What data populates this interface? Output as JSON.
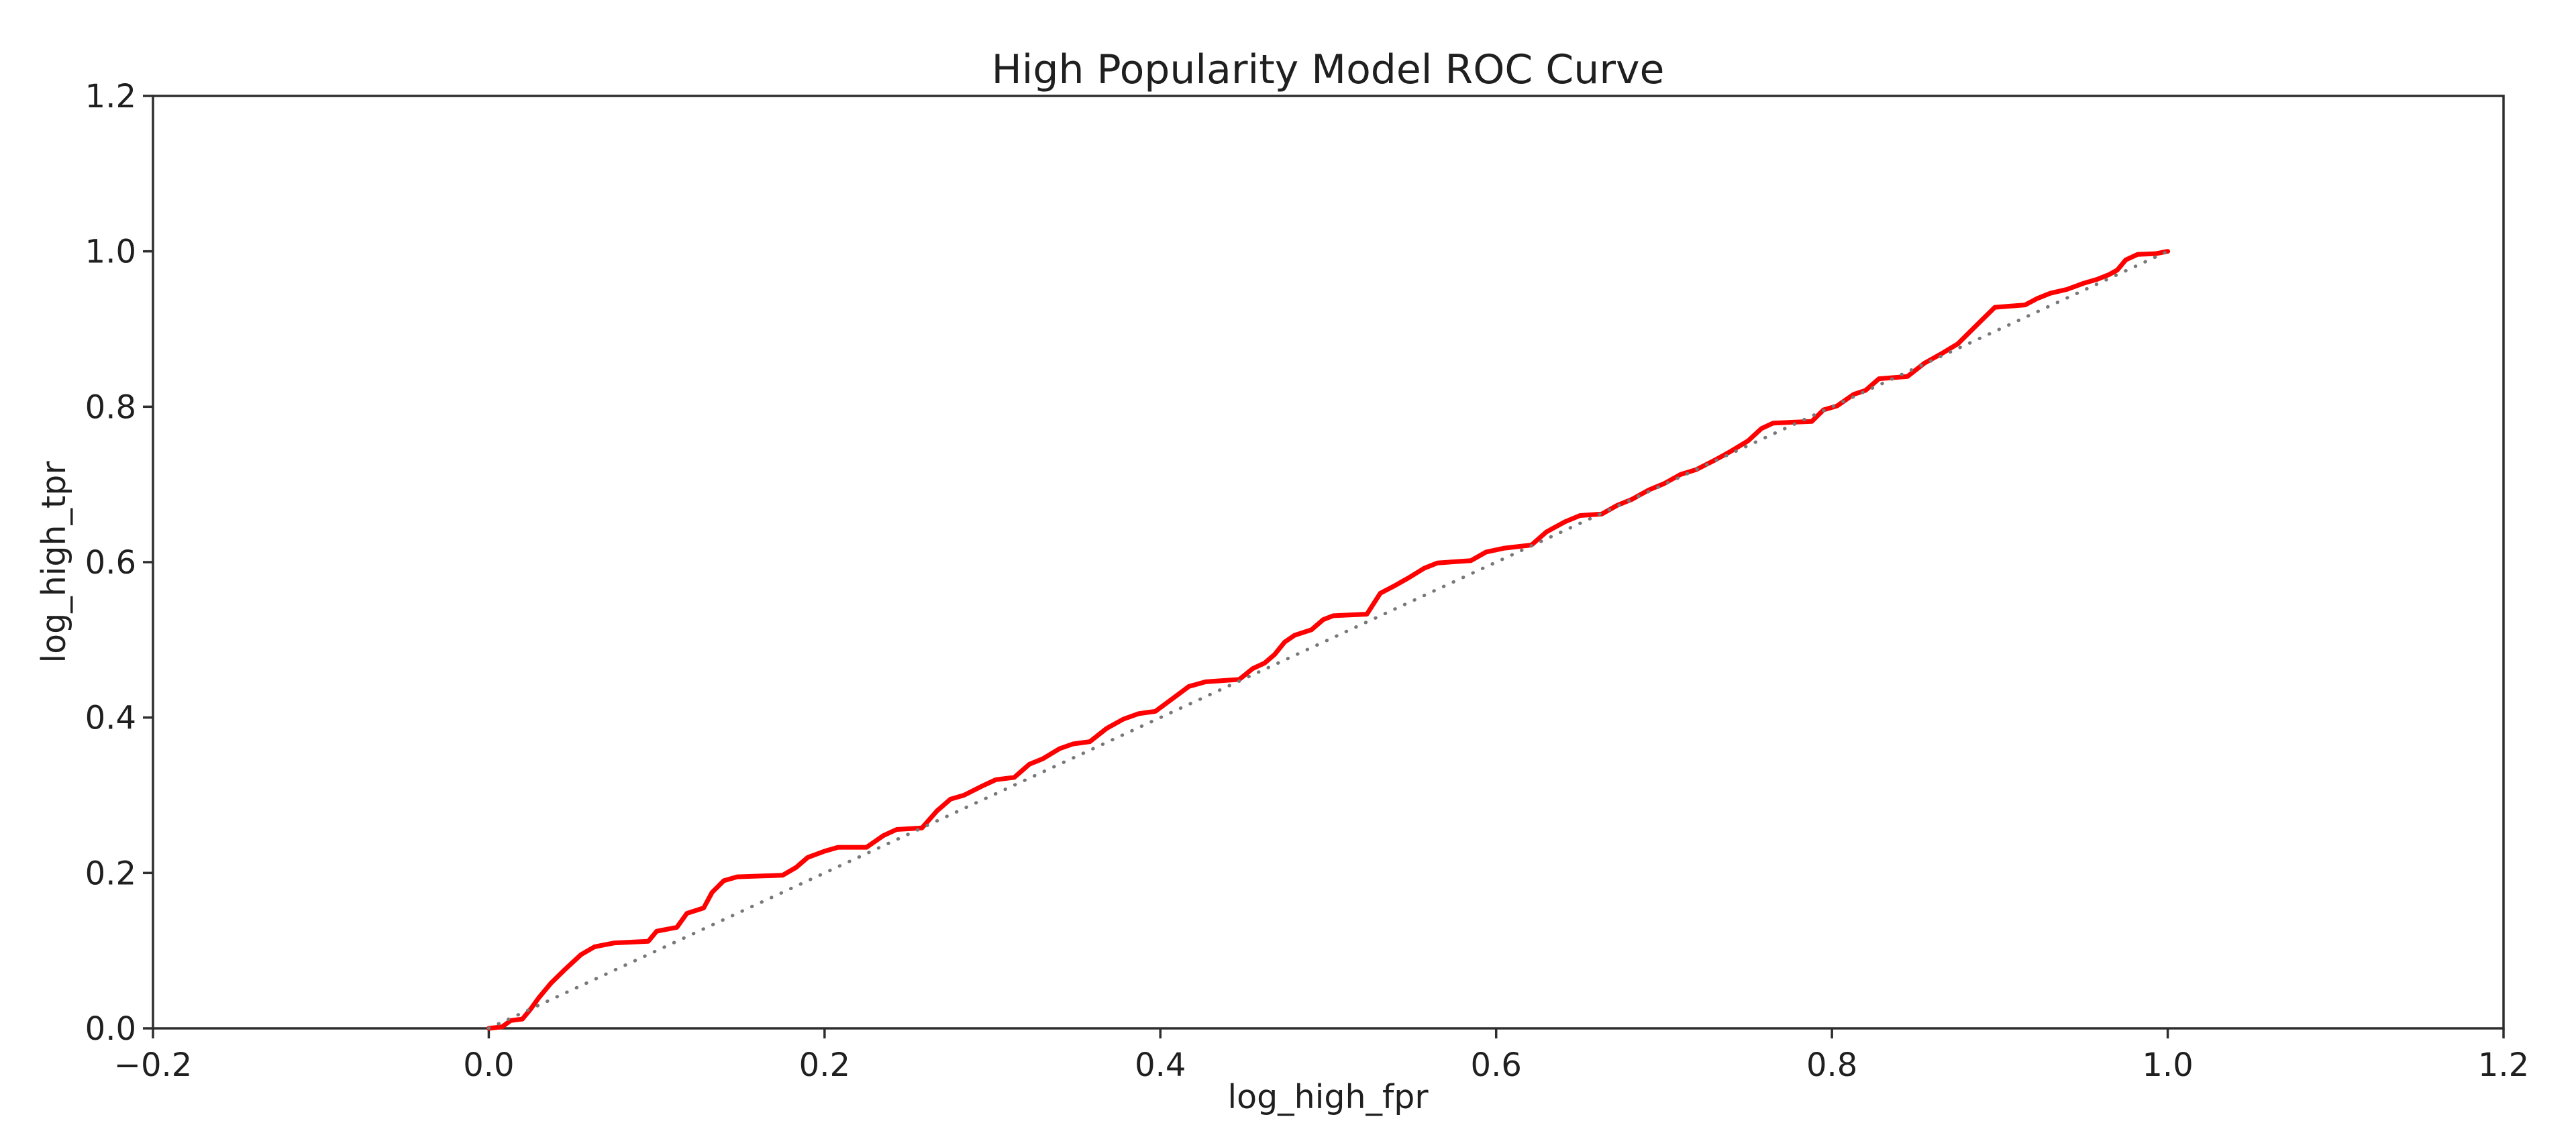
{
  "figure": {
    "background_color": "#ffffff",
    "frame_color": "#2e2e2e",
    "text_color": "#1f1f1f"
  },
  "chart_data": {
    "type": "line",
    "title": "High Popularity Model ROC Curve",
    "xlabel": "log_high_fpr",
    "ylabel": "log_high_tpr",
    "xlim": [
      -0.2,
      1.2
    ],
    "ylim": [
      0.0,
      1.2
    ],
    "grid": false,
    "legend": "none",
    "x_ticks": [
      -0.2,
      0.0,
      0.2,
      0.4,
      0.6,
      0.8,
      1.0,
      1.2
    ],
    "x_tick_labels": [
      "−0.2",
      "0.0",
      "0.2",
      "0.4",
      "0.6",
      "0.8",
      "1.0",
      "1.2"
    ],
    "y_ticks": [
      0.0,
      0.2,
      0.4,
      0.6,
      0.8,
      1.0,
      1.2
    ],
    "y_tick_labels": [
      "0.0",
      "0.2",
      "0.4",
      "0.6",
      "0.8",
      "1.0",
      "1.2"
    ],
    "series": [
      {
        "name": "roc_curve",
        "color": "#ff0000",
        "line_style": "solid",
        "line_width": 7,
        "points": [
          [
            0.0,
            0.0
          ],
          [
            0.008,
            0.002
          ],
          [
            0.013,
            0.01
          ],
          [
            0.02,
            0.012
          ],
          [
            0.025,
            0.025
          ],
          [
            0.03,
            0.04
          ],
          [
            0.037,
            0.058
          ],
          [
            0.045,
            0.075
          ],
          [
            0.055,
            0.095
          ],
          [
            0.063,
            0.105
          ],
          [
            0.075,
            0.11
          ],
          [
            0.095,
            0.112
          ],
          [
            0.1,
            0.125
          ],
          [
            0.112,
            0.13
          ],
          [
            0.118,
            0.148
          ],
          [
            0.128,
            0.155
          ],
          [
            0.133,
            0.175
          ],
          [
            0.14,
            0.19
          ],
          [
            0.148,
            0.195
          ],
          [
            0.175,
            0.197
          ],
          [
            0.183,
            0.207
          ],
          [
            0.19,
            0.22
          ],
          [
            0.2,
            0.228
          ],
          [
            0.208,
            0.233
          ],
          [
            0.225,
            0.233
          ],
          [
            0.235,
            0.248
          ],
          [
            0.243,
            0.256
          ],
          [
            0.258,
            0.258
          ],
          [
            0.267,
            0.28
          ],
          [
            0.275,
            0.295
          ],
          [
            0.283,
            0.3
          ],
          [
            0.295,
            0.313
          ],
          [
            0.302,
            0.32
          ],
          [
            0.313,
            0.323
          ],
          [
            0.322,
            0.34
          ],
          [
            0.33,
            0.347
          ],
          [
            0.34,
            0.36
          ],
          [
            0.348,
            0.366
          ],
          [
            0.358,
            0.369
          ],
          [
            0.368,
            0.386
          ],
          [
            0.378,
            0.398
          ],
          [
            0.387,
            0.405
          ],
          [
            0.397,
            0.408
          ],
          [
            0.407,
            0.424
          ],
          [
            0.417,
            0.44
          ],
          [
            0.427,
            0.446
          ],
          [
            0.447,
            0.449
          ],
          [
            0.455,
            0.463
          ],
          [
            0.462,
            0.47
          ],
          [
            0.468,
            0.481
          ],
          [
            0.474,
            0.497
          ],
          [
            0.48,
            0.506
          ],
          [
            0.49,
            0.513
          ],
          [
            0.497,
            0.526
          ],
          [
            0.503,
            0.531
          ],
          [
            0.523,
            0.533
          ],
          [
            0.531,
            0.56
          ],
          [
            0.539,
            0.569
          ],
          [
            0.548,
            0.58
          ],
          [
            0.557,
            0.592
          ],
          [
            0.565,
            0.599
          ],
          [
            0.585,
            0.602
          ],
          [
            0.594,
            0.613
          ],
          [
            0.605,
            0.618
          ],
          [
            0.621,
            0.622
          ],
          [
            0.63,
            0.639
          ],
          [
            0.641,
            0.652
          ],
          [
            0.65,
            0.66
          ],
          [
            0.663,
            0.662
          ],
          [
            0.672,
            0.673
          ],
          [
            0.681,
            0.681
          ],
          [
            0.691,
            0.693
          ],
          [
            0.7,
            0.701
          ],
          [
            0.71,
            0.713
          ],
          [
            0.719,
            0.719
          ],
          [
            0.73,
            0.731
          ],
          [
            0.74,
            0.743
          ],
          [
            0.75,
            0.756
          ],
          [
            0.758,
            0.772
          ],
          [
            0.765,
            0.779
          ],
          [
            0.788,
            0.781
          ],
          [
            0.795,
            0.796
          ],
          [
            0.803,
            0.801
          ],
          [
            0.813,
            0.816
          ],
          [
            0.82,
            0.821
          ],
          [
            0.828,
            0.836
          ],
          [
            0.845,
            0.839
          ],
          [
            0.855,
            0.856
          ],
          [
            0.865,
            0.868
          ],
          [
            0.875,
            0.881
          ],
          [
            0.882,
            0.896
          ],
          [
            0.89,
            0.913
          ],
          [
            0.897,
            0.928
          ],
          [
            0.915,
            0.931
          ],
          [
            0.922,
            0.939
          ],
          [
            0.93,
            0.946
          ],
          [
            0.94,
            0.951
          ],
          [
            0.95,
            0.959
          ],
          [
            0.958,
            0.964
          ],
          [
            0.965,
            0.97
          ],
          [
            0.97,
            0.976
          ],
          [
            0.975,
            0.989
          ],
          [
            0.982,
            0.996
          ],
          [
            0.993,
            0.997
          ],
          [
            1.0,
            1.0
          ]
        ]
      },
      {
        "name": "chance_diagonal",
        "color": "#787878",
        "line_style": "dotted",
        "line_width": 5,
        "points": [
          [
            0.0,
            0.0
          ],
          [
            1.0,
            1.0
          ]
        ]
      }
    ]
  }
}
